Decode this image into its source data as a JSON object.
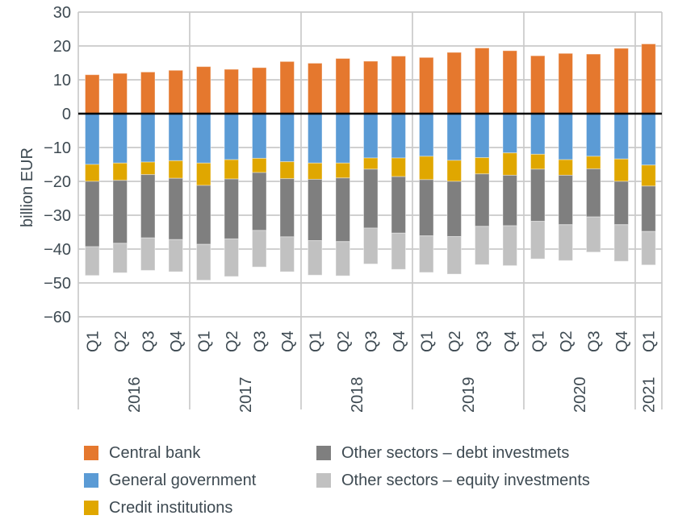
{
  "chart_data": {
    "type": "bar",
    "stacked": true,
    "title": "",
    "xlabel": "",
    "ylabel": "billion EUR",
    "ylim": [
      -60,
      30
    ],
    "grid": true,
    "legend_position": "bottom",
    "y_ticks": [
      {
        "value": 30,
        "label": "30"
      },
      {
        "value": 20,
        "label": "20"
      },
      {
        "value": 10,
        "label": "10"
      },
      {
        "value": 0,
        "label": "0"
      },
      {
        "value": -10,
        "label": "−10"
      },
      {
        "value": -20,
        "label": "−20"
      },
      {
        "value": -30,
        "label": "−30"
      },
      {
        "value": -40,
        "label": "−40"
      },
      {
        "value": -50,
        "label": "−50"
      },
      {
        "value": -60,
        "label": "−60"
      }
    ],
    "groups": [
      {
        "year": "2016",
        "quarters": [
          "Q1",
          "Q2",
          "Q3",
          "Q4"
        ]
      },
      {
        "year": "2017",
        "quarters": [
          "Q1",
          "Q2",
          "Q3",
          "Q4"
        ]
      },
      {
        "year": "2018",
        "quarters": [
          "Q1",
          "Q2",
          "Q3",
          "Q4"
        ]
      },
      {
        "year": "2019",
        "quarters": [
          "Q1",
          "Q2",
          "Q3",
          "Q4"
        ]
      },
      {
        "year": "2020",
        "quarters": [
          "Q1",
          "Q2",
          "Q3",
          "Q4"
        ]
      },
      {
        "year": "2021",
        "quarters": [
          "Q1"
        ]
      }
    ],
    "series": [
      {
        "name": "Central bank",
        "color": "#E5782E",
        "values": [
          11.5,
          11.9,
          12.3,
          12.8,
          13.9,
          13.1,
          13.6,
          15.4,
          14.9,
          16.3,
          15.5,
          17.0,
          16.6,
          18.1,
          19.4,
          18.6,
          17.1,
          17.8,
          17.6,
          19.3,
          20.6
        ]
      },
      {
        "name": "General government",
        "color": "#5B9BD5",
        "values": [
          -15.0,
          -14.6,
          -14.3,
          -13.9,
          -14.6,
          -13.6,
          -13.2,
          -14.2,
          -14.6,
          -14.6,
          -13.1,
          -13.1,
          -12.6,
          -13.8,
          -13.0,
          -11.6,
          -12.0,
          -13.6,
          -12.6,
          -13.4,
          -15.2
        ]
      },
      {
        "name": "Credit institutions",
        "color": "#E0A700",
        "values": [
          -5.0,
          -5.1,
          -3.7,
          -5.2,
          -6.6,
          -5.7,
          -4.2,
          -5.0,
          -4.8,
          -4.4,
          -3.3,
          -5.5,
          -6.9,
          -6.2,
          -4.8,
          -6.6,
          -4.4,
          -4.6,
          -3.7,
          -6.6,
          -6.2
        ]
      },
      {
        "name": "Other sectors – debt investmets",
        "color": "#7F7F7F",
        "values": [
          -19.3,
          -18.6,
          -18.7,
          -18.1,
          -17.4,
          -17.7,
          -17.1,
          -17.2,
          -18.1,
          -18.8,
          -17.4,
          -16.7,
          -16.6,
          -16.3,
          -15.5,
          -14.9,
          -15.4,
          -14.6,
          -14.2,
          -12.8,
          -13.4
        ]
      },
      {
        "name": "Other sectors – equity investments",
        "color": "#C1C1C1",
        "values": [
          -8.5,
          -8.7,
          -9.6,
          -9.5,
          -10.6,
          -11.1,
          -10.8,
          -10.3,
          -10.2,
          -10.1,
          -10.6,
          -10.7,
          -10.8,
          -11.1,
          -11.3,
          -11.8,
          -11.1,
          -10.6,
          -10.4,
          -10.8,
          -9.9
        ]
      }
    ]
  },
  "legend": {
    "columns": [
      [
        0,
        1,
        2
      ],
      [
        3,
        4
      ]
    ]
  },
  "style": {
    "axis_text_color": "#3E4A52",
    "gridline_color": "#CACACA",
    "zero_line_color": "#000000",
    "background": "#FFFFFF"
  }
}
